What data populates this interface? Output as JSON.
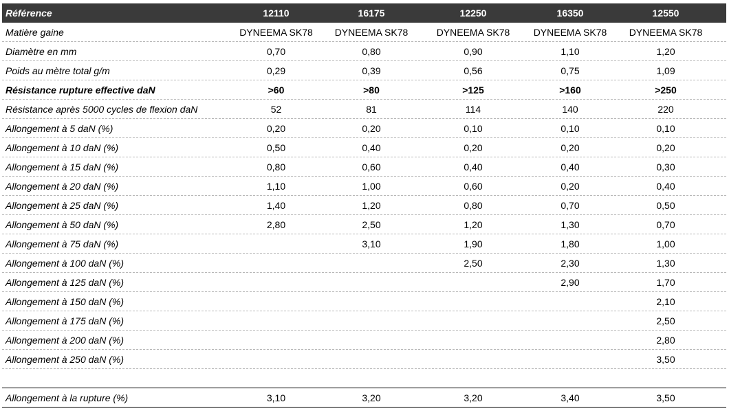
{
  "header": {
    "label": "Référence",
    "refs": [
      "12110",
      "16175",
      "12250",
      "16350",
      "12550"
    ]
  },
  "rows": [
    {
      "label": "Matière gaine",
      "values": [
        "DYNEEMA SK78",
        "DYNEEMA SK78",
        "DYNEEMA SK78",
        "DYNEEMA SK78",
        "DYNEEMA SK78"
      ]
    },
    {
      "label": "Diamètre en mm",
      "values": [
        "0,70",
        "0,80",
        "0,90",
        "1,10",
        "1,20"
      ]
    },
    {
      "label": "Poids au mètre total g/m",
      "values": [
        "0,29",
        "0,39",
        "0,56",
        "0,75",
        "1,09"
      ]
    },
    {
      "label": "Résistance rupture effective daN",
      "values": [
        ">60",
        ">80",
        ">125",
        ">160",
        ">250"
      ]
    },
    {
      "label": "Résistance après 5000 cycles de flexion daN",
      "values": [
        "52",
        "81",
        "114",
        "140",
        "220"
      ]
    },
    {
      "label": "Allongement à 5 daN (%)",
      "values": [
        "0,20",
        "0,20",
        "0,10",
        "0,10",
        "0,10"
      ]
    },
    {
      "label": "Allongement à 10 daN (%)",
      "values": [
        "0,50",
        "0,40",
        "0,20",
        "0,20",
        "0,20"
      ]
    },
    {
      "label": "Allongement à 15 daN (%)",
      "values": [
        "0,80",
        "0,60",
        "0,40",
        "0,40",
        "0,30"
      ]
    },
    {
      "label": "Allongement à 20 daN (%)",
      "values": [
        "1,10",
        "1,00",
        "0,60",
        "0,20",
        "0,40"
      ]
    },
    {
      "label": "Allongement à 25 daN (%)",
      "values": [
        "1,40",
        "1,20",
        "0,80",
        "0,70",
        "0,50"
      ]
    },
    {
      "label": "Allongement à 50 daN (%)",
      "values": [
        "2,80",
        "2,50",
        "1,20",
        "1,30",
        "0,70"
      ]
    },
    {
      "label": "Allongement à 75 daN (%)",
      "values": [
        "",
        "3,10",
        "1,90",
        "1,80",
        "1,00"
      ]
    },
    {
      "label": "Allongement à 100 daN (%)",
      "values": [
        "",
        "",
        "2,50",
        "2,30",
        "1,30"
      ]
    },
    {
      "label": "Allongement à 125 daN (%)",
      "values": [
        "",
        "",
        "",
        "2,90",
        "1,70"
      ]
    },
    {
      "label": "Allongement à 150 daN (%)",
      "values": [
        "",
        "",
        "",
        "",
        "2,10"
      ]
    },
    {
      "label": "Allongement à 175 daN (%)",
      "values": [
        "",
        "",
        "",
        "",
        "2,50"
      ]
    },
    {
      "label": "Allongement à 200 daN (%)",
      "values": [
        "",
        "",
        "",
        "",
        "2,80"
      ]
    },
    {
      "label": "Allongement à 250 daN (%)",
      "values": [
        "",
        "",
        "",
        "",
        "3,50"
      ]
    }
  ],
  "final": {
    "label": "Allongement à la rupture (%)",
    "values": [
      "3,10",
      "3,20",
      "3,20",
      "3,40",
      "3,50"
    ]
  },
  "colors": {
    "header_bg": "#3a3a3a",
    "header_text": "#ffffff",
    "row_divider": "#b8b8b8"
  }
}
